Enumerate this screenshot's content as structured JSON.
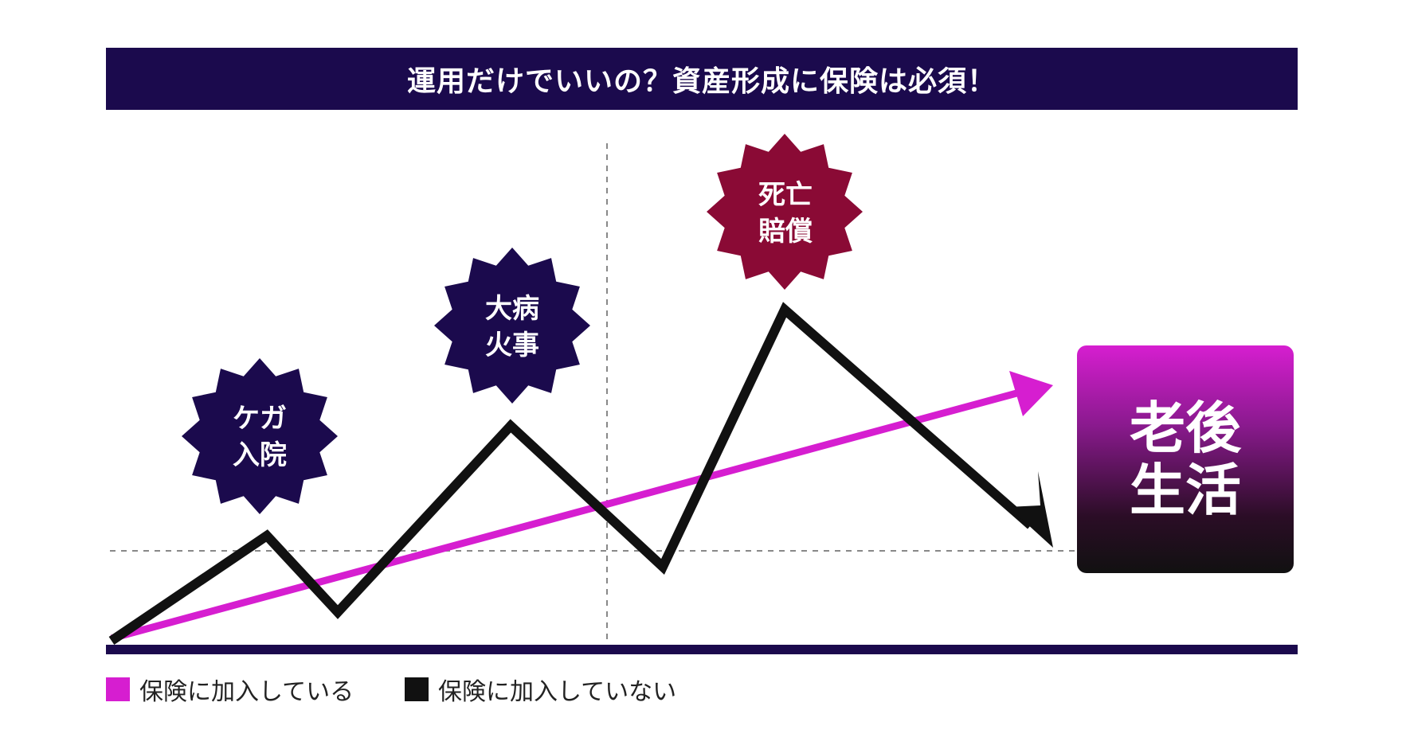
{
  "title": "運用だけでいいの？資産形成に保険は必須！",
  "events": [
    {
      "label": "ケガ\n入院",
      "color": "#1b0a4d"
    },
    {
      "label": "大病\n火事",
      "color": "#1b0a4d"
    },
    {
      "label": "死亡\n賠償",
      "color": "#8a0a35"
    }
  ],
  "goal": {
    "label": "老後\n生活"
  },
  "legend": [
    {
      "label": "保険に加入している",
      "color": "#d61ed0"
    },
    {
      "label": "保険に加入していない",
      "color": "#111111"
    }
  ],
  "colors": {
    "insured_line": "#d61ed0",
    "uninsured_line": "#111111",
    "axis": "#1b0a4d",
    "guide": "#888888"
  }
}
